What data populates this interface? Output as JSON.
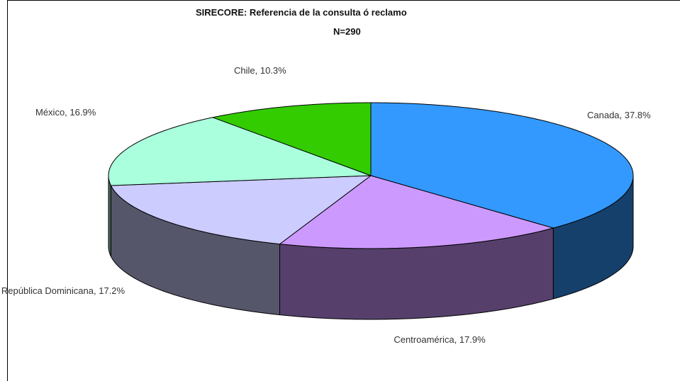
{
  "chart_data": {
    "type": "pie3d",
    "title": "SIRECORE: Referencia de la consulta ó reclamo",
    "subtitle": "N=290",
    "values": [
      37.8,
      17.9,
      17.2,
      16.9,
      10.3
    ],
    "value_labels": [
      "Canada, 37.8%",
      "Centroamérica, 17.9%",
      "República Dominicana, 17.2%",
      "México, 16.9%",
      "Chile, 10.3%"
    ],
    "colors": [
      "#3399ff",
      "#cc99ff",
      "#ccccff",
      "#aaffdd",
      "#33cc00"
    ]
  }
}
